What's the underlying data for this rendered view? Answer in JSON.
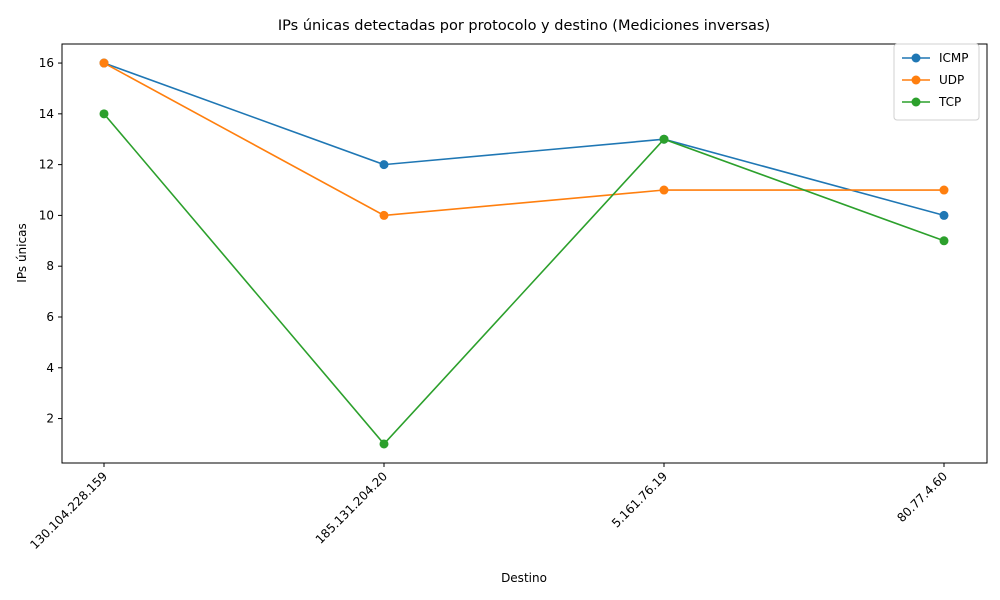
{
  "chart_data": {
    "type": "line",
    "title": "IPs únicas detectadas por protocolo y destino (Mediciones inversas)",
    "xlabel": "Destino",
    "ylabel": "IPs únicas",
    "categories": [
      "130.104.228.159",
      "185.131.204.20",
      "5.161.76.19",
      "80.77.4.60"
    ],
    "ylim": [
      0.25,
      16.75
    ],
    "yticks": [
      2,
      4,
      6,
      8,
      10,
      12,
      14,
      16
    ],
    "grid": false,
    "legend_position": "top-right",
    "series": [
      {
        "name": "ICMP",
        "color": "#1f77b4",
        "values": [
          16,
          12,
          13,
          10
        ]
      },
      {
        "name": "UDP",
        "color": "#ff7f0e",
        "values": [
          16,
          10,
          11,
          11
        ]
      },
      {
        "name": "TCP",
        "color": "#2ca02c",
        "values": [
          14,
          1,
          13,
          9
        ]
      }
    ]
  }
}
